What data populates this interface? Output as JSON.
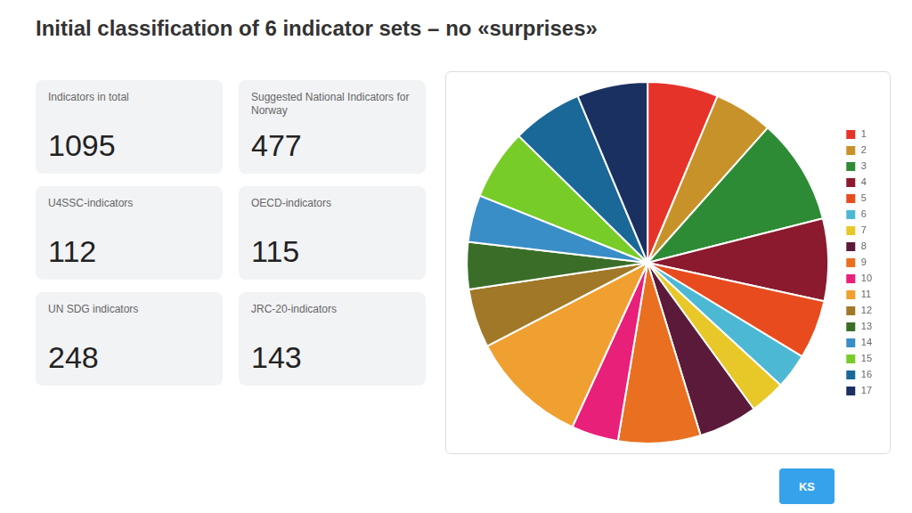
{
  "chart_data": {
    "type": "pie",
    "title": "Initial classification of 6 indicator sets – no «surprises»",
    "categories": [
      "1",
      "2",
      "3",
      "4",
      "5",
      "6",
      "7",
      "8",
      "9",
      "10",
      "11",
      "12",
      "13",
      "14",
      "15",
      "16",
      "17"
    ],
    "values": [
      6,
      5,
      9,
      7,
      5,
      3,
      3,
      5,
      7,
      4,
      10,
      5,
      4,
      4,
      6,
      6,
      6
    ],
    "colors": [
      "#e63329",
      "#c8922a",
      "#2e8b35",
      "#8b1a2e",
      "#e84c1e",
      "#4db8d4",
      "#e8c828",
      "#5c1a3a",
      "#e87020",
      "#e8207a",
      "#f0a030",
      "#a07828",
      "#3a6e28",
      "#3a8ec8",
      "#78cc28",
      "#1a6898",
      "#1a3060"
    ],
    "legend": "right",
    "annotations": [
      {
        "text": "Indicators in total",
        "value": 1095
      },
      {
        "text": "Suggested National Indicators for Norway",
        "value": 477
      },
      {
        "text": "U4SSC-indicators",
        "value": 112
      },
      {
        "text": "OECD-indicators",
        "value": 115
      },
      {
        "text": "UN SDG indicators",
        "value": 248
      },
      {
        "text": "JRC-20-indicators",
        "value": 143
      },
      {
        "text": "KS"
      }
    ]
  }
}
